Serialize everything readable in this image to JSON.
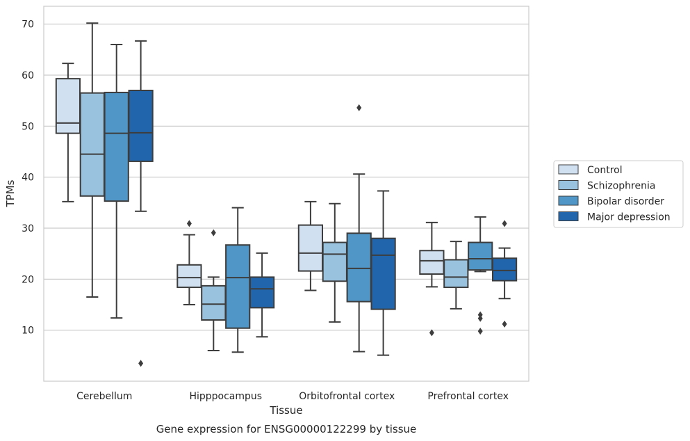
{
  "chart_data": {
    "type": "boxplot",
    "caption": "Gene expression for ENSG00000122299 by tissue",
    "xlabel": "Tissue",
    "ylabel": "TPMs",
    "ylim": [
      0,
      73.5
    ],
    "yticks": [
      10,
      20,
      30,
      40,
      50,
      60,
      70
    ],
    "grid": true,
    "legend_position": "right",
    "categories": [
      "Cerebellum",
      "Hipppocampus",
      "Orbitofrontal cortex",
      "Prefrontal cortex"
    ],
    "series": [
      {
        "name": "Control",
        "color": "#d0e0f1",
        "boxes": [
          {
            "whislo": 35.2,
            "q1": 48.6,
            "med": 50.6,
            "q3": 59.3,
            "whishi": 62.3,
            "fliers": []
          },
          {
            "whislo": 15.0,
            "q1": 18.4,
            "med": 20.3,
            "q3": 22.8,
            "whishi": 28.7,
            "fliers": [
              30.9
            ]
          },
          {
            "whislo": 17.8,
            "q1": 21.6,
            "med": 25.1,
            "q3": 30.6,
            "whishi": 35.2,
            "fliers": []
          },
          {
            "whislo": 18.5,
            "q1": 21.0,
            "med": 23.6,
            "q3": 25.6,
            "whishi": 31.1,
            "fliers": [
              9.5
            ]
          }
        ]
      },
      {
        "name": "Schizophrenia",
        "color": "#99c2de",
        "boxes": [
          {
            "whislo": 16.5,
            "q1": 36.3,
            "med": 44.5,
            "q3": 56.5,
            "whishi": 70.2,
            "fliers": []
          },
          {
            "whislo": 6.0,
            "q1": 12.0,
            "med": 15.1,
            "q3": 18.7,
            "whishi": 20.4,
            "fliers": [
              29.1
            ]
          },
          {
            "whislo": 11.6,
            "q1": 19.6,
            "med": 24.9,
            "q3": 27.2,
            "whishi": 34.8,
            "fliers": []
          },
          {
            "whislo": 14.2,
            "q1": 18.4,
            "med": 20.4,
            "q3": 23.8,
            "whishi": 27.4,
            "fliers": []
          }
        ]
      },
      {
        "name": "Bipolar disorder",
        "color": "#5096c6",
        "boxes": [
          {
            "whislo": 12.4,
            "q1": 35.3,
            "med": 48.6,
            "q3": 56.6,
            "whishi": 66.0,
            "fliers": []
          },
          {
            "whislo": 5.7,
            "q1": 10.4,
            "med": 20.3,
            "q3": 26.7,
            "whishi": 34.0,
            "fliers": []
          },
          {
            "whislo": 5.8,
            "q1": 15.6,
            "med": 22.1,
            "q3": 29.0,
            "whishi": 40.6,
            "fliers": [
              53.6
            ]
          },
          {
            "whislo": 21.5,
            "q1": 21.8,
            "med": 24.0,
            "q3": 27.2,
            "whishi": 32.2,
            "fliers": [
              13.0,
              12.3,
              9.8
            ]
          }
        ]
      },
      {
        "name": "Major depression",
        "color": "#2166ac",
        "boxes": [
          {
            "whislo": 33.3,
            "q1": 43.1,
            "med": 48.7,
            "q3": 57.0,
            "whishi": 66.7,
            "fliers": [
              3.5
            ]
          },
          {
            "whislo": 8.7,
            "q1": 14.4,
            "med": 18.1,
            "q3": 20.4,
            "whishi": 25.1,
            "fliers": []
          },
          {
            "whislo": 5.1,
            "q1": 14.1,
            "med": 24.7,
            "q3": 28.0,
            "whishi": 37.3,
            "fliers": []
          },
          {
            "whislo": 16.2,
            "q1": 19.7,
            "med": 21.7,
            "q3": 24.1,
            "whishi": 26.1,
            "fliers": [
              30.9,
              11.2
            ]
          }
        ]
      }
    ]
  }
}
